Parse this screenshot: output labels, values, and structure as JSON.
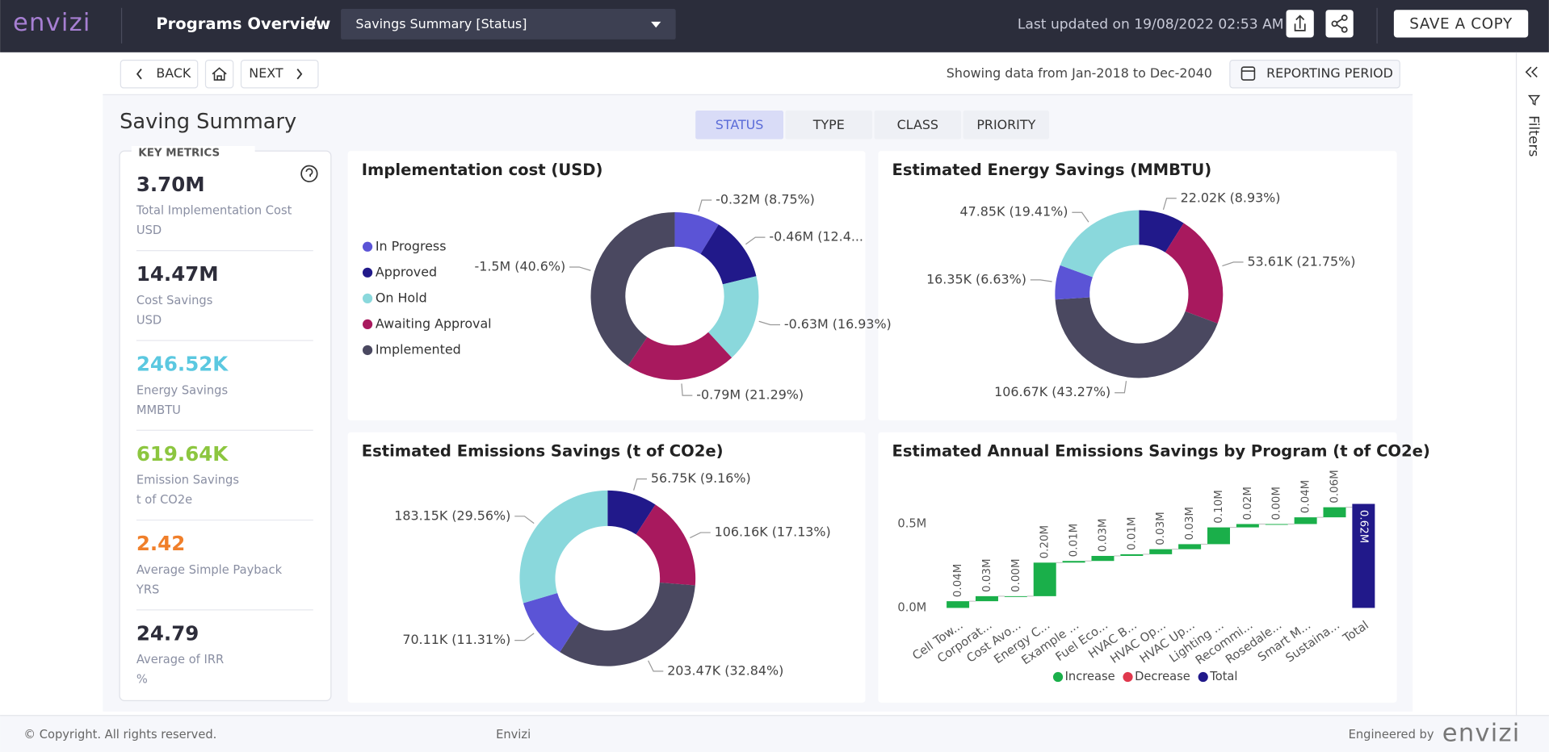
{
  "header": {
    "logo": "envizi",
    "title": "Programs Overview",
    "separator": "/",
    "dropdown": "Savings Summary [Status]",
    "last_updated": "Last updated on 19/08/2022 02:53 AM",
    "save_button": "SAVE A COPY"
  },
  "nav": {
    "back": "BACK",
    "next": "NEXT",
    "range": "Showing data from Jan-2018 to Dec-2040",
    "reporting": "REPORTING PERIOD"
  },
  "sidebar": {
    "filters": "Filters"
  },
  "page_title": "Saving Summary",
  "tabs": [
    "STATUS",
    "TYPE",
    "CLASS",
    "PRIORITY"
  ],
  "active_tab": 0,
  "key_metrics": {
    "title": "KEY METRICS",
    "items": [
      {
        "value": "3.70M",
        "label": "Total Implementation Cost",
        "unit": "USD",
        "color": "#2d2d3a"
      },
      {
        "value": "14.47M",
        "label": "Cost Savings",
        "unit": "USD",
        "color": "#2d2d3a"
      },
      {
        "value": "246.52K",
        "label": "Energy Savings",
        "unit": "MMBTU",
        "color": "#5bc8e0"
      },
      {
        "value": "619.64K",
        "label": "Emission Savings",
        "unit": "t of CO2e",
        "color": "#8cc63f"
      },
      {
        "value": "2.42",
        "label": "Average Simple Payback",
        "unit": "YRS",
        "color": "#f07f2a"
      },
      {
        "value": "24.79",
        "label": "Average of IRR",
        "unit": "%",
        "color": "#2d2d3a"
      }
    ]
  },
  "charts": [
    {
      "type": "donut",
      "title": "Implementation cost (USD)",
      "categories": [
        "In Progress",
        "Approved",
        "On Hold",
        "Awaiting Approval",
        "Implemented"
      ],
      "colors": [
        "#5b54d6",
        "#21198a",
        "#8ad8dc",
        "#a8195e",
        "#4a4860"
      ],
      "values": [
        8.75,
        12.43,
        16.93,
        21.29,
        40.6
      ],
      "value_labels": [
        "-0.32M (8.75%)",
        "-0.46M (12.4...",
        "-0.63M (16.93%)",
        "-0.79M (21.29%)",
        "-1.5M (40.6%)"
      ],
      "legend": true
    },
    {
      "type": "donut",
      "title": "Estimated Energy Savings (MMBTU)",
      "colors": [
        "#21198a",
        "#a8195e",
        "#4a4860",
        "#5b54d6",
        "#8ad8dc"
      ],
      "values": [
        8.93,
        21.75,
        43.27,
        6.63,
        19.41
      ],
      "value_labels": [
        "22.02K (8.93%)",
        "53.61K (21.75%)",
        "106.67K (43.27%)",
        "16.35K (6.63%)",
        "47.85K (19.41%)"
      ],
      "legend": false
    },
    {
      "type": "donut",
      "title": "Estimated Emissions Savings (t of CO2e)",
      "colors": [
        "#21198a",
        "#a8195e",
        "#4a4860",
        "#5b54d6",
        "#8ad8dc"
      ],
      "values": [
        9.16,
        17.13,
        32.84,
        11.31,
        29.56
      ],
      "value_labels": [
        "56.75K (9.16%)",
        "106.16K (17.13%)",
        "203.47K (32.84%)",
        "70.11K (11.31%)",
        "183.15K (29.56%)"
      ],
      "legend": false
    },
    {
      "type": "waterfall",
      "title": "Estimated Annual Emissions Savings by Program (t of CO2e)",
      "categories": [
        "Cell Tow...",
        "Corporat...",
        "Cost Avo...",
        "Energy C...",
        "Example ...",
        "Fuel Eco...",
        "HVAC B...",
        "HVAC Op...",
        "HVAC Up...",
        "Lighting ...",
        "Recommi...",
        "Rosedale...",
        "Smart M...",
        "Sustaina...",
        "Total"
      ],
      "values": [
        0.04,
        0.03,
        0.0,
        0.2,
        0.01,
        0.03,
        0.01,
        0.03,
        0.03,
        0.1,
        0.02,
        0.0,
        0.04,
        0.06,
        0.62
      ],
      "value_labels": [
        "0.04M",
        "0.03M",
        "0.00M",
        "0.20M",
        "0.01M",
        "0.03M",
        "0.01M",
        "0.03M",
        "0.03M",
        "0.10M",
        "0.02M",
        "0.00M",
        "0.04M",
        "0.06M",
        "0.62M"
      ],
      "totals": [
        14
      ],
      "ylim": [
        -0.05,
        0.65
      ],
      "yticks": [
        {
          "value": 0,
          "label": "0.0M"
        },
        {
          "value": 0.5,
          "label": "0.5M"
        }
      ],
      "legend": [
        {
          "name": "Increase",
          "color": "#1aaf4a"
        },
        {
          "name": "Decrease",
          "color": "#e0384d"
        },
        {
          "name": "Total",
          "color": "#21198a"
        }
      ]
    }
  ],
  "footer": {
    "copyright": "© Copyright. All rights reserved.",
    "brand": "Envizi",
    "engineered": "Engineered by",
    "logo": "envizi"
  }
}
